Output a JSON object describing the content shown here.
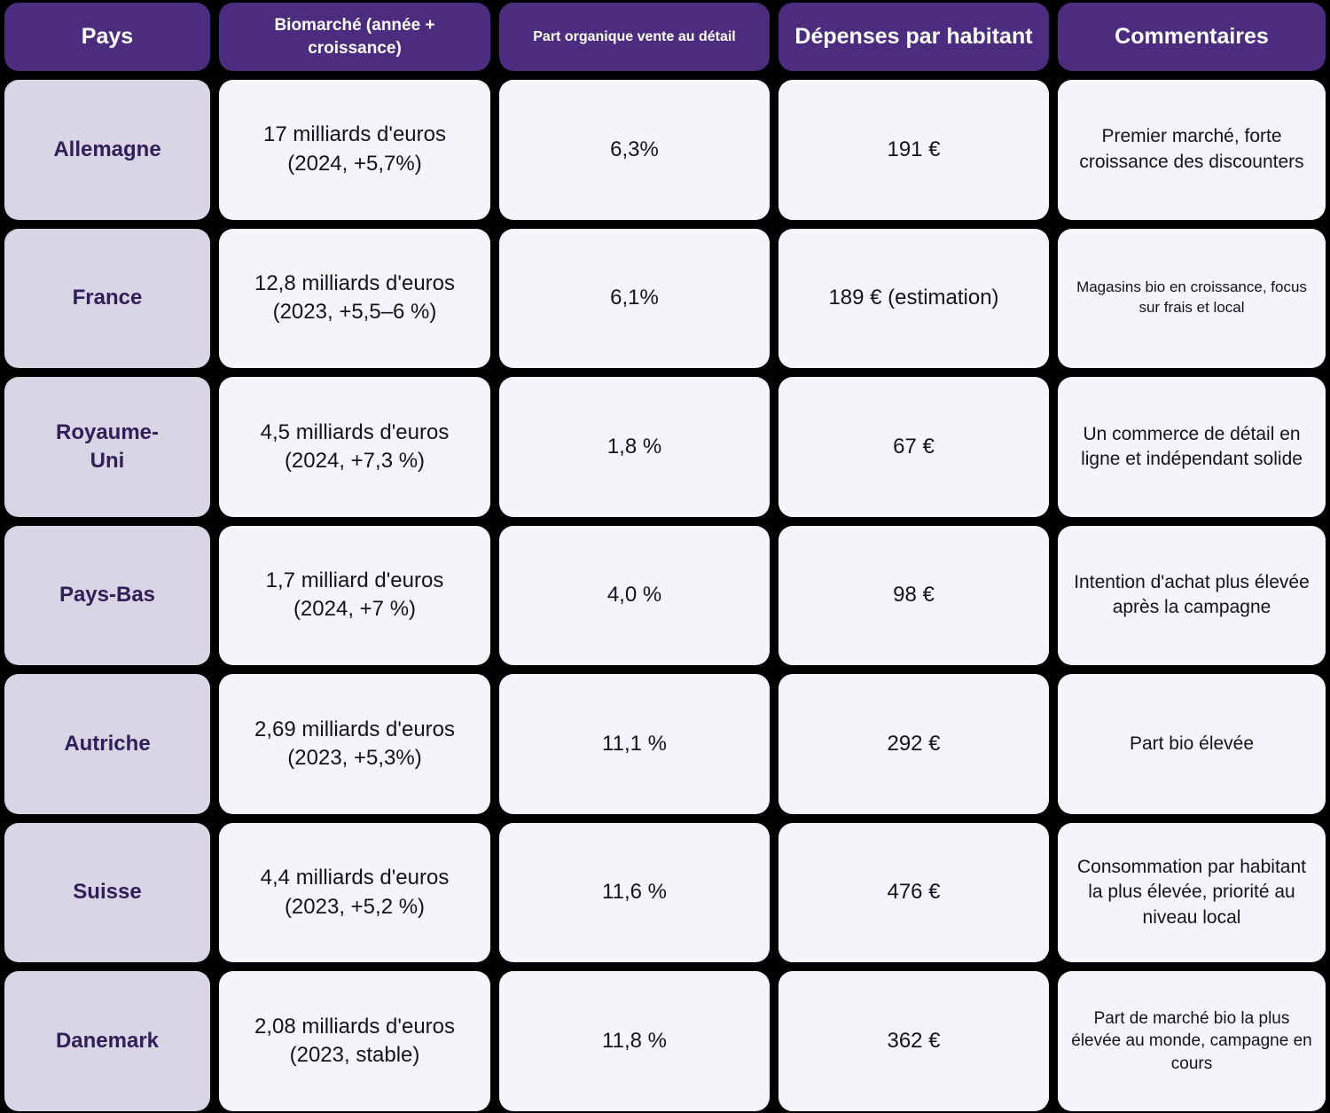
{
  "colors": {
    "background": "#000000",
    "header_bg": "#4B2C7F",
    "header_text": "#FFFFFF",
    "country_bg": "#DAD5E5",
    "country_text": "#2E2159",
    "cell_bg": "#F6F4FB",
    "cell_text": "#15121C"
  },
  "chart_data": {
    "type": "table",
    "title": "",
    "columns": [
      "Pays",
      "Biomarché (année + croissance)",
      "Part organique vente au détail",
      "Dépenses par habitant",
      "Commentaires"
    ],
    "rows": [
      [
        "Allemagne",
        "17 milliards d'euros\n(2024, +5,7%)",
        "6,3%",
        "191 €",
        "Premier marché, forte croissance des discounters"
      ],
      [
        "France",
        "12,8 milliards d'euros\n(2023, +5,5–6 %)",
        "6,1%",
        "189 € (estimation)",
        "Magasins bio en croissance, focus sur frais et local"
      ],
      [
        "Royaume-\nUni",
        "4,5 milliards d'euros\n(2024, +7,3 %)",
        "1,8 %",
        "67 €",
        "Un commerce de détail en ligne et indépendant solide"
      ],
      [
        "Pays-Bas",
        "1,7 milliard d'euros\n(2024, +7 %)",
        "4,0 %",
        "98 €",
        "Intention d'achat plus élevée après la campagne"
      ],
      [
        "Autriche",
        "2,69 milliards d'euros\n(2023, +5,3%)",
        "11,1 %",
        "292 €",
        "Part bio élevée"
      ],
      [
        "Suisse",
        "4,4 milliards d'euros\n(2023, +5,2 %)",
        "11,6 %",
        "476 €",
        "Consommation par habitant la plus élevée, priorité au niveau local"
      ],
      [
        "Danemark",
        "2,08 milliards d'euros\n(2023, stable)",
        "11,8 %",
        "362 €",
        "Part de marché bio la plus élevée au monde, campagne en cours"
      ]
    ]
  }
}
